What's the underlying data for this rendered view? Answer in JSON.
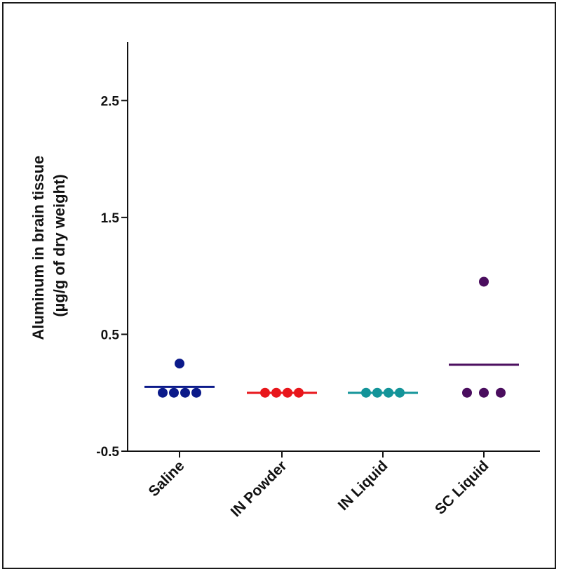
{
  "chart_data": {
    "type": "scatter",
    "ylabel_line1": "Aluminum in brain tissue",
    "ylabel_line2": "(µg/g of dry weight)",
    "ylim": [
      -0.5,
      3.0
    ],
    "yticks": [
      -0.5,
      0.5,
      1.5,
      2.5
    ],
    "ytick_labels": [
      "-0.5",
      "0.5",
      "1.5",
      "2.5"
    ],
    "categories": [
      "Saline",
      "IN Powder",
      "IN Liquid",
      "SC Liquid"
    ],
    "series": [
      {
        "category": "Saline",
        "color": "#0b1a8a",
        "points": [
          0.25,
          0.0,
          0.0,
          0.0,
          0.0
        ],
        "mean": 0.05
      },
      {
        "category": "IN Powder",
        "color": "#e8161b",
        "points": [
          0.0,
          0.0,
          0.0,
          0.0
        ],
        "mean": 0.0
      },
      {
        "category": "IN Liquid",
        "color": "#139499",
        "points": [
          0.0,
          0.0,
          0.0,
          0.0
        ],
        "mean": 0.0
      },
      {
        "category": "SC Liquid",
        "color": "#4a0d5e",
        "points": [
          0.95,
          0.0,
          0.0,
          0.0
        ],
        "mean": 0.24
      }
    ],
    "grid": false,
    "legend": "none"
  }
}
